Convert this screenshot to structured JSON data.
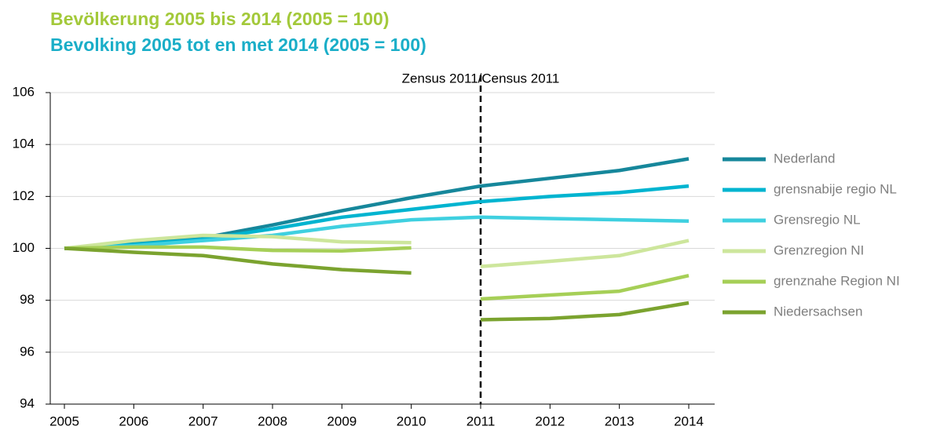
{
  "chart_data": {
    "type": "line",
    "title": "Bevölkerung 2005 bis 2014 (2005 = 100)",
    "subtitle": "Bevolking 2005 tot en met 2014 (2005 = 100)",
    "title_color": "#a3c93a",
    "subtitle_color": "#1aaec8",
    "annotation": {
      "text": "Zensus 2011/Census 2011",
      "category": "2011"
    },
    "categories": [
      "2005",
      "2006",
      "2007",
      "2008",
      "2009",
      "2010",
      "2011",
      "2012",
      "2013",
      "2014"
    ],
    "ylim": [
      94,
      106
    ],
    "yticks": [
      94,
      96,
      98,
      100,
      102,
      104,
      106
    ],
    "grid": true,
    "legend": "right",
    "series": [
      {
        "name": "Nederland",
        "color": "#16879b",
        "values": [
          100,
          100.2,
          100.4,
          100.9,
          101.45,
          101.95,
          102.4,
          102.7,
          103.0,
          103.45
        ]
      },
      {
        "name": "grensnabije regio NL",
        "color": "#00b4d0",
        "values": [
          100,
          100.15,
          100.35,
          100.75,
          101.2,
          101.5,
          101.8,
          102.0,
          102.15,
          102.4
        ]
      },
      {
        "name": "Grensregio NL",
        "color": "#3fd0e0",
        "values": [
          100,
          100.1,
          100.3,
          100.5,
          100.85,
          101.1,
          101.2,
          101.15,
          101.1,
          101.05
        ]
      },
      {
        "name": "Grenzregion NI",
        "color": "#cde69c",
        "break_before": "2011",
        "values": [
          100,
          100.3,
          100.5,
          100.45,
          100.25,
          100.22,
          99.3,
          99.5,
          99.72,
          100.3
        ]
      },
      {
        "name": "grenznahe Region NI",
        "color": "#a6cf57",
        "break_before": "2011",
        "values": [
          100,
          100.05,
          100.05,
          99.92,
          99.9,
          100.02,
          98.05,
          98.2,
          98.35,
          98.95
        ]
      },
      {
        "name": "Niedersachsen",
        "color": "#7ba32f",
        "break_before": "2011",
        "values": [
          100,
          99.85,
          99.72,
          99.4,
          99.18,
          99.05,
          97.25,
          97.3,
          97.45,
          97.9
        ]
      }
    ]
  }
}
